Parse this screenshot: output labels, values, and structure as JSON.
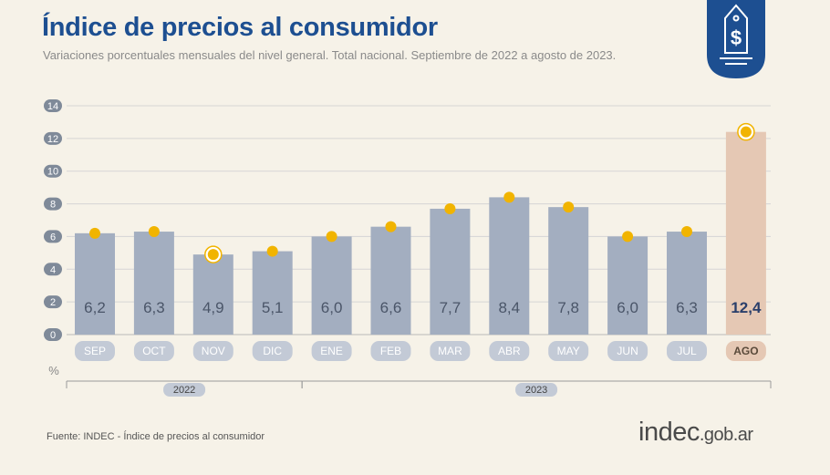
{
  "header": {
    "title": "Índice de precios al consumidor",
    "subtitle": "Variaciones porcentuales mensuales del nivel general. Total nacional. Septiembre de 2022 a agosto de 2023."
  },
  "badge": {
    "icon": "price-tag-dollar-icon",
    "color": "#1d4f91"
  },
  "footer": {
    "source": "Fuente: INDEC - Índice de precios al consumidor",
    "logo_main": "indec",
    "logo_domain": ".gob.ar"
  },
  "colors": {
    "bar": "#a3aec0",
    "bar_highlight": "#e5c8b4",
    "marker": "#f1b400",
    "grid": "#d5d5d5",
    "tick_pill": "#7f8a99",
    "title": "#1d4f91"
  },
  "chart_data": {
    "type": "bar",
    "categories": [
      "SEP",
      "OCT",
      "NOV",
      "DIC",
      "ENE",
      "FEB",
      "MAR",
      "ABR",
      "MAY",
      "JUN",
      "JUL",
      "AGO"
    ],
    "values": [
      6.2,
      6.3,
      4.9,
      5.1,
      6.0,
      6.6,
      7.7,
      8.4,
      7.8,
      6.0,
      6.3,
      12.4
    ],
    "value_labels": [
      "6,2",
      "6,3",
      "4,9",
      "5,1",
      "6,0",
      "6,6",
      "7,7",
      "8,4",
      "7,8",
      "6,0",
      "6,3",
      "12,4"
    ],
    "highlight_index": 11,
    "ringed_marker_indices": [
      2,
      11
    ],
    "ylim": [
      0,
      14
    ],
    "yticks": [
      "0",
      "2",
      "4",
      "6",
      "8",
      "10",
      "12",
      "14"
    ],
    "ylabel": "%",
    "grid": true,
    "year_groups": [
      {
        "label": "2022",
        "first_index": 0,
        "last_index": 3
      },
      {
        "label": "2023",
        "first_index": 4,
        "last_index": 11
      }
    ]
  }
}
